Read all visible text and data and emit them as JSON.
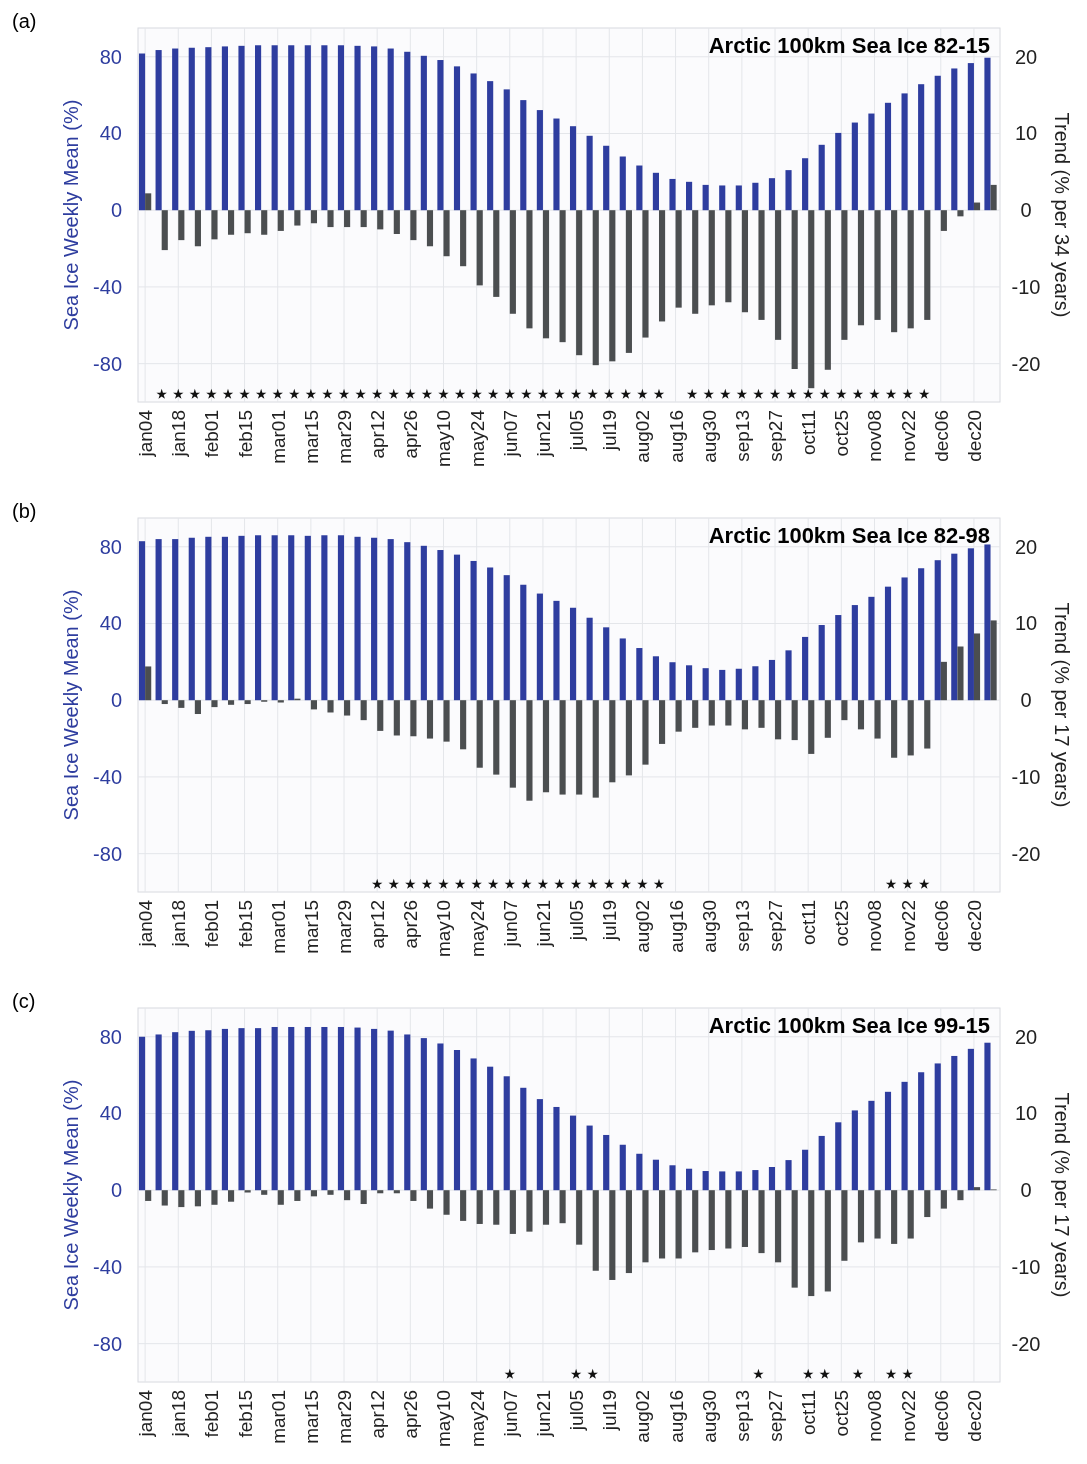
{
  "chart_data": [
    {
      "type": "bar",
      "title": "Arctic 100km Sea Ice 82-15",
      "ylabel": "Sea Ice Weekly Mean (%)",
      "y2label": "Trend (% per 34 years)",
      "annotations": [
        "(a)"
      ],
      "x": [
        "--01-04",
        "--01-11",
        "--01-18",
        "--01-25",
        "--02-01",
        "--02-08",
        "--02-15",
        "--02-22",
        "--03-01",
        "--03-08",
        "--03-15",
        "--03-22",
        "--03-29",
        "--04-05",
        "--04-12",
        "--04-19",
        "--04-26",
        "--05-03",
        "--05-10",
        "--05-17",
        "--05-24",
        "--05-31",
        "--06-07",
        "--06-14",
        "--06-21",
        "--06-28",
        "--07-05",
        "--07-12",
        "--07-19",
        "--07-26",
        "--08-02",
        "--08-09",
        "--08-16",
        "--08-23",
        "--08-30",
        "--09-06",
        "--09-13",
        "--09-20",
        "--09-27",
        "--10-04",
        "--10-11",
        "--10-18",
        "--10-25",
        "--11-01",
        "--11-08",
        "--11-15",
        "--11-22",
        "--11-29",
        "--12-06",
        "--12-13",
        "--12-20",
        "--12-27"
      ],
      "xlim": [
        "--01-01",
        "--12-31"
      ],
      "xticks": [
        {
          "value": "--01-04",
          "label": "jan04"
        },
        {
          "value": "--01-18",
          "label": "jan18"
        },
        {
          "value": "--02-01",
          "label": "feb01"
        },
        {
          "value": "--02-15",
          "label": "feb15"
        },
        {
          "value": "--03-01",
          "label": "mar01"
        },
        {
          "value": "--03-15",
          "label": "mar15"
        },
        {
          "value": "--03-29",
          "label": "mar29"
        },
        {
          "value": "--04-12",
          "label": "apr12"
        },
        {
          "value": "--04-26",
          "label": "apr26"
        },
        {
          "value": "--05-10",
          "label": "may10"
        },
        {
          "value": "--05-24",
          "label": "may24"
        },
        {
          "value": "--06-07",
          "label": "jun07"
        },
        {
          "value": "--06-21",
          "label": "jun21"
        },
        {
          "value": "--07-05",
          "label": "jul05"
        },
        {
          "value": "--07-19",
          "label": "jul19"
        },
        {
          "value": "--08-02",
          "label": "aug02"
        },
        {
          "value": "--08-16",
          "label": "aug16"
        },
        {
          "value": "--08-30",
          "label": "aug30"
        },
        {
          "value": "--09-13",
          "label": "sep13"
        },
        {
          "value": "--09-27",
          "label": "sep27"
        },
        {
          "value": "--10-11",
          "label": "oct11"
        },
        {
          "value": "--10-25",
          "label": "oct25"
        },
        {
          "value": "--11-08",
          "label": "nov08"
        },
        {
          "value": "--11-22",
          "label": "nov22"
        },
        {
          "value": "--12-06",
          "label": "dec06"
        },
        {
          "value": "--12-20",
          "label": "dec20"
        }
      ],
      "series": [
        {
          "color": "#2e3d9f",
          "values": [
            81.7,
            83.5,
            84.3,
            84.7,
            85,
            85.4,
            85.7,
            86,
            86,
            86,
            86,
            86,
            86,
            85.7,
            85.4,
            84.3,
            82.6,
            80.5,
            78.3,
            75,
            71.3,
            67.3,
            63,
            57.4,
            52.2,
            47.8,
            43.8,
            38.8,
            33.6,
            28,
            23.3,
            19.5,
            16.3,
            14.8,
            13.2,
            12.9,
            12.9,
            14.3,
            16.7,
            20.9,
            27.1,
            34.1,
            40.3,
            45.7,
            50.4,
            56,
            60.9,
            65.7,
            70.1,
            73.9,
            76.7,
            79.5
          ]
        },
        {
          "color": "#4b4e50",
          "axis": "y2",
          "values": [
            2.2,
            -5.2,
            -3.9,
            -4.7,
            -3.8,
            -3.2,
            -3,
            -3.2,
            -2.7,
            -2,
            -1.7,
            -2.2,
            -2.2,
            -2.2,
            -2.5,
            -3.1,
            -3.9,
            -4.7,
            -6,
            -7.3,
            -9.8,
            -11.3,
            -13.5,
            -15.4,
            -16.7,
            -17.2,
            -18.9,
            -20.2,
            -19.7,
            -18.6,
            -16.6,
            -14.5,
            -12.7,
            -13.5,
            -12.4,
            -12,
            -13.3,
            -14.3,
            -16.9,
            -20.7,
            -23.2,
            -20.8,
            -16.9,
            -15,
            -14.3,
            -15.9,
            -15.4,
            -14.3,
            -2.7,
            -0.8,
            1,
            3.3
          ]
        },
        {
          "type": "scatter",
          "color": "#111111",
          "marker": "star",
          "x": [
            "--01-11",
            "--01-18",
            "--01-25",
            "--02-01",
            "--02-08",
            "--02-15",
            "--02-22",
            "--03-01",
            "--03-08",
            "--03-15",
            "--03-22",
            "--03-29",
            "--04-05",
            "--04-12",
            "--04-19",
            "--04-26",
            "--05-03",
            "--05-10",
            "--05-17",
            "--05-24",
            "--05-31",
            "--06-07",
            "--06-14",
            "--06-21",
            "--06-28",
            "--07-05",
            "--07-12",
            "--07-19",
            "--07-26",
            "--08-02",
            "--08-09",
            "--08-23",
            "--08-30",
            "--09-06",
            "--09-13",
            "--09-20",
            "--09-27",
            "--10-04",
            "--10-11",
            "--10-18",
            "--10-25",
            "--11-01",
            "--11-08",
            "--11-15",
            "--11-22",
            "--11-29"
          ],
          "values": [
            -96,
            -96,
            -96,
            -96,
            -96,
            -96,
            -96,
            -96,
            -96,
            -96,
            -96,
            -96,
            -96,
            -96,
            -96,
            -96,
            -96,
            -96,
            -96,
            -96,
            -96,
            -96,
            -96,
            -96,
            -96,
            -96,
            -96,
            -96,
            -96,
            -96,
            -96,
            -96,
            -96,
            -96,
            -96,
            -96,
            -96,
            -96,
            -96,
            -96,
            -96,
            -96,
            -96,
            -96,
            -96,
            -96
          ]
        }
      ],
      "ylim": [
        -100,
        95
      ],
      "yticks": [
        -80,
        -40,
        0,
        40,
        80
      ],
      "y2lim": [
        -25,
        23.75
      ],
      "y2ticks": [
        -20,
        -10,
        0,
        10,
        20
      ],
      "grid": true
    },
    {
      "type": "bar",
      "title": "Arctic 100km Sea Ice 82-98",
      "ylabel": "Sea Ice Weekly Mean (%)",
      "y2label": "Trend (% per 17 years)",
      "annotations": [
        "(b)"
      ],
      "x": [
        "--01-04",
        "--01-11",
        "--01-18",
        "--01-25",
        "--02-01",
        "--02-08",
        "--02-15",
        "--02-22",
        "--03-01",
        "--03-08",
        "--03-15",
        "--03-22",
        "--03-29",
        "--04-05",
        "--04-12",
        "--04-19",
        "--04-26",
        "--05-03",
        "--05-10",
        "--05-17",
        "--05-24",
        "--05-31",
        "--06-07",
        "--06-14",
        "--06-21",
        "--06-28",
        "--07-05",
        "--07-12",
        "--07-19",
        "--07-26",
        "--08-02",
        "--08-09",
        "--08-16",
        "--08-23",
        "--08-30",
        "--09-06",
        "--09-13",
        "--09-20",
        "--09-27",
        "--10-04",
        "--10-11",
        "--10-18",
        "--10-25",
        "--11-01",
        "--11-08",
        "--11-15",
        "--11-22",
        "--11-29",
        "--12-06",
        "--12-13",
        "--12-20",
        "--12-27"
      ],
      "xlim": [
        "--01-01",
        "--12-31"
      ],
      "xticks": [
        {
          "value": "--01-04",
          "label": "jan04"
        },
        {
          "value": "--01-18",
          "label": "jan18"
        },
        {
          "value": "--02-01",
          "label": "feb01"
        },
        {
          "value": "--02-15",
          "label": "feb15"
        },
        {
          "value": "--03-01",
          "label": "mar01"
        },
        {
          "value": "--03-15",
          "label": "mar15"
        },
        {
          "value": "--03-29",
          "label": "mar29"
        },
        {
          "value": "--04-12",
          "label": "apr12"
        },
        {
          "value": "--04-26",
          "label": "apr26"
        },
        {
          "value": "--05-10",
          "label": "may10"
        },
        {
          "value": "--05-24",
          "label": "may24"
        },
        {
          "value": "--06-07",
          "label": "jun07"
        },
        {
          "value": "--06-21",
          "label": "jun21"
        },
        {
          "value": "--07-05",
          "label": "jul05"
        },
        {
          "value": "--07-19",
          "label": "jul19"
        },
        {
          "value": "--08-02",
          "label": "aug02"
        },
        {
          "value": "--08-16",
          "label": "aug16"
        },
        {
          "value": "--08-30",
          "label": "aug30"
        },
        {
          "value": "--09-13",
          "label": "sep13"
        },
        {
          "value": "--09-27",
          "label": "sep27"
        },
        {
          "value": "--10-11",
          "label": "oct11"
        },
        {
          "value": "--10-25",
          "label": "oct25"
        },
        {
          "value": "--11-08",
          "label": "nov08"
        },
        {
          "value": "--11-22",
          "label": "nov22"
        },
        {
          "value": "--12-06",
          "label": "dec06"
        },
        {
          "value": "--12-20",
          "label": "dec20"
        }
      ],
      "series": [
        {
          "color": "#2e3d9f",
          "values": [
            82.9,
            84,
            84,
            84.7,
            85.2,
            85.2,
            85.7,
            86,
            86,
            86,
            85.7,
            86,
            86,
            85.2,
            84.7,
            84,
            82.4,
            80.5,
            78.3,
            75.9,
            72.6,
            69.2,
            65.2,
            60.2,
            55.6,
            51.8,
            48.2,
            43,
            38,
            32.2,
            27.2,
            22.9,
            19.8,
            18.2,
            16.7,
            15.8,
            16.4,
            17.7,
            21,
            26,
            33,
            39.2,
            44.4,
            49.6,
            53.9,
            59.2,
            64,
            68.8,
            73,
            76.4,
            79.2,
            81.2
          ]
        },
        {
          "color": "#4b4e50",
          "axis": "y2",
          "values": [
            4.4,
            -0.5,
            -1,
            -1.8,
            -0.9,
            -0.6,
            -0.5,
            -0.2,
            -0.3,
            0.2,
            -1.2,
            -1.6,
            -2,
            -2.6,
            -4,
            -4.6,
            -4.7,
            -5,
            -5.4,
            -6.4,
            -8.8,
            -9.7,
            -11.4,
            -13.1,
            -12,
            -12.3,
            -12.3,
            -12.7,
            -10.7,
            -9.8,
            -8.4,
            -5.7,
            -4.1,
            -3.6,
            -3.3,
            -3.3,
            -3.8,
            -3.6,
            -5.1,
            -5.2,
            -7,
            -4.9,
            -2.6,
            -3.8,
            -5,
            -7.5,
            -7.2,
            -6.3,
            5,
            7,
            8.7,
            10.4
          ]
        },
        {
          "type": "scatter",
          "color": "#111111",
          "marker": "star",
          "x": [
            "--04-12",
            "--04-19",
            "--04-26",
            "--05-03",
            "--05-10",
            "--05-17",
            "--05-24",
            "--05-31",
            "--06-07",
            "--06-14",
            "--06-21",
            "--06-28",
            "--07-05",
            "--07-12",
            "--07-19",
            "--07-26",
            "--08-02",
            "--08-09",
            "--11-15",
            "--11-22",
            "--11-29"
          ],
          "values": [
            -96,
            -96,
            -96,
            -96,
            -96,
            -96,
            -96,
            -96,
            -96,
            -96,
            -96,
            -96,
            -96,
            -96,
            -96,
            -96,
            -96,
            -96,
            -96,
            -96,
            -96
          ]
        }
      ],
      "ylim": [
        -100,
        95
      ],
      "yticks": [
        -80,
        -40,
        0,
        40,
        80
      ],
      "y2lim": [
        -25,
        23.75
      ],
      "y2ticks": [
        -20,
        -10,
        0,
        10,
        20
      ],
      "grid": true
    },
    {
      "type": "bar",
      "title": "Arctic 100km Sea Ice 99-15",
      "ylabel": "Sea Ice Weekly Mean (%)",
      "y2label": "Trend (% per 17 years)",
      "annotations": [
        "(c)"
      ],
      "x": [
        "--01-04",
        "--01-11",
        "--01-18",
        "--01-25",
        "--02-01",
        "--02-08",
        "--02-15",
        "--02-22",
        "--03-01",
        "--03-08",
        "--03-15",
        "--03-22",
        "--03-29",
        "--04-05",
        "--04-12",
        "--04-19",
        "--04-26",
        "--05-03",
        "--05-10",
        "--05-17",
        "--05-24",
        "--05-31",
        "--06-07",
        "--06-14",
        "--06-21",
        "--06-28",
        "--07-05",
        "--07-12",
        "--07-19",
        "--07-26",
        "--08-02",
        "--08-09",
        "--08-16",
        "--08-23",
        "--08-30",
        "--09-06",
        "--09-13",
        "--09-20",
        "--09-27",
        "--10-04",
        "--10-11",
        "--10-18",
        "--10-25",
        "--11-01",
        "--11-08",
        "--11-15",
        "--11-22",
        "--11-29",
        "--12-06",
        "--12-13",
        "--12-20",
        "--12-27"
      ],
      "xlim": [
        "--01-01",
        "--12-31"
      ],
      "xticks": [
        {
          "value": "--01-04",
          "label": "jan04"
        },
        {
          "value": "--01-18",
          "label": "jan18"
        },
        {
          "value": "--02-01",
          "label": "feb01"
        },
        {
          "value": "--02-15",
          "label": "feb15"
        },
        {
          "value": "--03-01",
          "label": "mar01"
        },
        {
          "value": "--03-15",
          "label": "mar15"
        },
        {
          "value": "--03-29",
          "label": "mar29"
        },
        {
          "value": "--04-12",
          "label": "apr12"
        },
        {
          "value": "--04-26",
          "label": "apr26"
        },
        {
          "value": "--05-10",
          "label": "may10"
        },
        {
          "value": "--05-24",
          "label": "may24"
        },
        {
          "value": "--06-07",
          "label": "jun07"
        },
        {
          "value": "--06-21",
          "label": "jun21"
        },
        {
          "value": "--07-05",
          "label": "jul05"
        },
        {
          "value": "--07-19",
          "label": "jul19"
        },
        {
          "value": "--08-02",
          "label": "aug02"
        },
        {
          "value": "--08-16",
          "label": "aug16"
        },
        {
          "value": "--08-30",
          "label": "aug30"
        },
        {
          "value": "--09-13",
          "label": "sep13"
        },
        {
          "value": "--09-27",
          "label": "sep27"
        },
        {
          "value": "--10-11",
          "label": "oct11"
        },
        {
          "value": "--10-25",
          "label": "oct25"
        },
        {
          "value": "--11-08",
          "label": "nov08"
        },
        {
          "value": "--11-22",
          "label": "nov22"
        },
        {
          "value": "--12-06",
          "label": "dec06"
        },
        {
          "value": "--12-20",
          "label": "dec20"
        }
      ],
      "series": [
        {
          "color": "#2e3d9f",
          "values": [
            80,
            81.2,
            82.4,
            83.1,
            83.4,
            84.1,
            84.5,
            84.5,
            85.1,
            85.1,
            85.1,
            85.1,
            85.1,
            84.8,
            84.1,
            83.2,
            81.2,
            79.3,
            76.5,
            73.1,
            68.7,
            64.4,
            59.4,
            53.4,
            47.5,
            43.4,
            38.9,
            33.7,
            28.8,
            23.7,
            19,
            15.9,
            13,
            11.2,
            10,
            9.8,
            9.8,
            10.5,
            12.1,
            15.7,
            21.1,
            28.3,
            35.4,
            41.6,
            46.6,
            51.3,
            56.5,
            61.5,
            66.1,
            70,
            73.7,
            76.9
          ]
        },
        {
          "color": "#4b4e50",
          "axis": "y2",
          "values": [
            -1.4,
            -2,
            -2.2,
            -2.1,
            -1.9,
            -1.5,
            -0.3,
            -0.6,
            -1.9,
            -1.4,
            -0.8,
            -0.6,
            -1.3,
            -1.8,
            -0.4,
            -0.4,
            -1.4,
            -2.4,
            -3.2,
            -4,
            -4.4,
            -4.5,
            -5.7,
            -5.4,
            -4.5,
            -4.3,
            -7.1,
            -10.5,
            -11.7,
            -10.8,
            -9.4,
            -8.9,
            -8.9,
            -8.1,
            -7.8,
            -7.6,
            -7.4,
            -8.2,
            -9.4,
            -12.7,
            -13.8,
            -13.2,
            -9.2,
            -6.8,
            -6.3,
            -7,
            -6.3,
            -3.5,
            -2.4,
            -1.3,
            0.4,
            0.1
          ]
        },
        {
          "type": "scatter",
          "color": "#111111",
          "marker": "star",
          "x": [
            "--06-07",
            "--07-05",
            "--07-12",
            "--09-20",
            "--10-11",
            "--10-18",
            "--11-01",
            "--11-15",
            "--11-22"
          ],
          "values": [
            -96,
            -96,
            -96,
            -96,
            -96,
            -96,
            -96,
            -96,
            -96
          ]
        }
      ],
      "ylim": [
        -100,
        95
      ],
      "yticks": [
        -80,
        -40,
        0,
        40,
        80
      ],
      "y2lim": [
        -25,
        23.75
      ],
      "y2ticks": [
        -20,
        -10,
        0,
        10,
        20
      ],
      "grid": true
    }
  ]
}
